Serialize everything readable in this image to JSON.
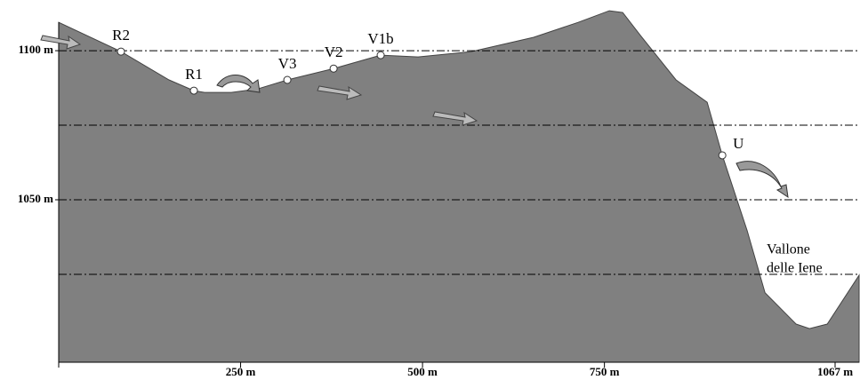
{
  "chart_data": {
    "type": "area",
    "color": "#808080",
    "x": [
      0,
      85.6,
      151.6,
      185.8,
      200.5,
      237.2,
      273.8,
      314.2,
      377.8,
      442.5,
      493.9,
      567.2,
      652.8,
      713.9,
      756.7,
      775.1,
      799.5,
      848.4,
      891.2,
      912,
      946.2,
      970.7,
      1013.4,
      1031.8,
      1056.2,
      1100
    ],
    "values": [
      1109.5,
      1099.7,
      1090.2,
      1086.6,
      1086,
      1086,
      1087.2,
      1090.2,
      1094,
      1098.5,
      1097.9,
      1099.7,
      1104.5,
      1109.5,
      1113.4,
      1112.8,
      1105.1,
      1090.2,
      1082.7,
      1064.9,
      1039.6,
      1018.8,
      1008.3,
      1006.8,
      1008.3,
      1024.7
    ],
    "xlim": [
      0,
      1100
    ],
    "ylim": [
      995.5,
      1117
    ],
    "xticks": [
      {
        "value": 250,
        "label": "250 m"
      },
      {
        "value": 500,
        "label": "500 m"
      },
      {
        "value": 750,
        "label": "750 m"
      },
      {
        "value": 1067,
        "label": "1067 m"
      }
    ],
    "yticks": [
      {
        "value": 1100,
        "label": "1100 m"
      },
      {
        "value": 1050,
        "label": "1050 m"
      }
    ],
    "grid_lines": [
      1100,
      1075,
      1050,
      1025
    ],
    "points": [
      {
        "label": "R2",
        "x": 85.6,
        "y": 1099.7
      },
      {
        "label": "R1",
        "x": 185.8,
        "y": 1086.6
      },
      {
        "label": "V3",
        "x": 314.2,
        "y": 1090.2
      },
      {
        "label": "V2",
        "x": 377.8,
        "y": 1094
      },
      {
        "label": "V1b",
        "x": 442.5,
        "y": 1098.5
      },
      {
        "label": "U",
        "x": 912,
        "y": 1064.9
      }
    ],
    "annotation": [
      "Vallone",
      "delle Iene"
    ]
  }
}
